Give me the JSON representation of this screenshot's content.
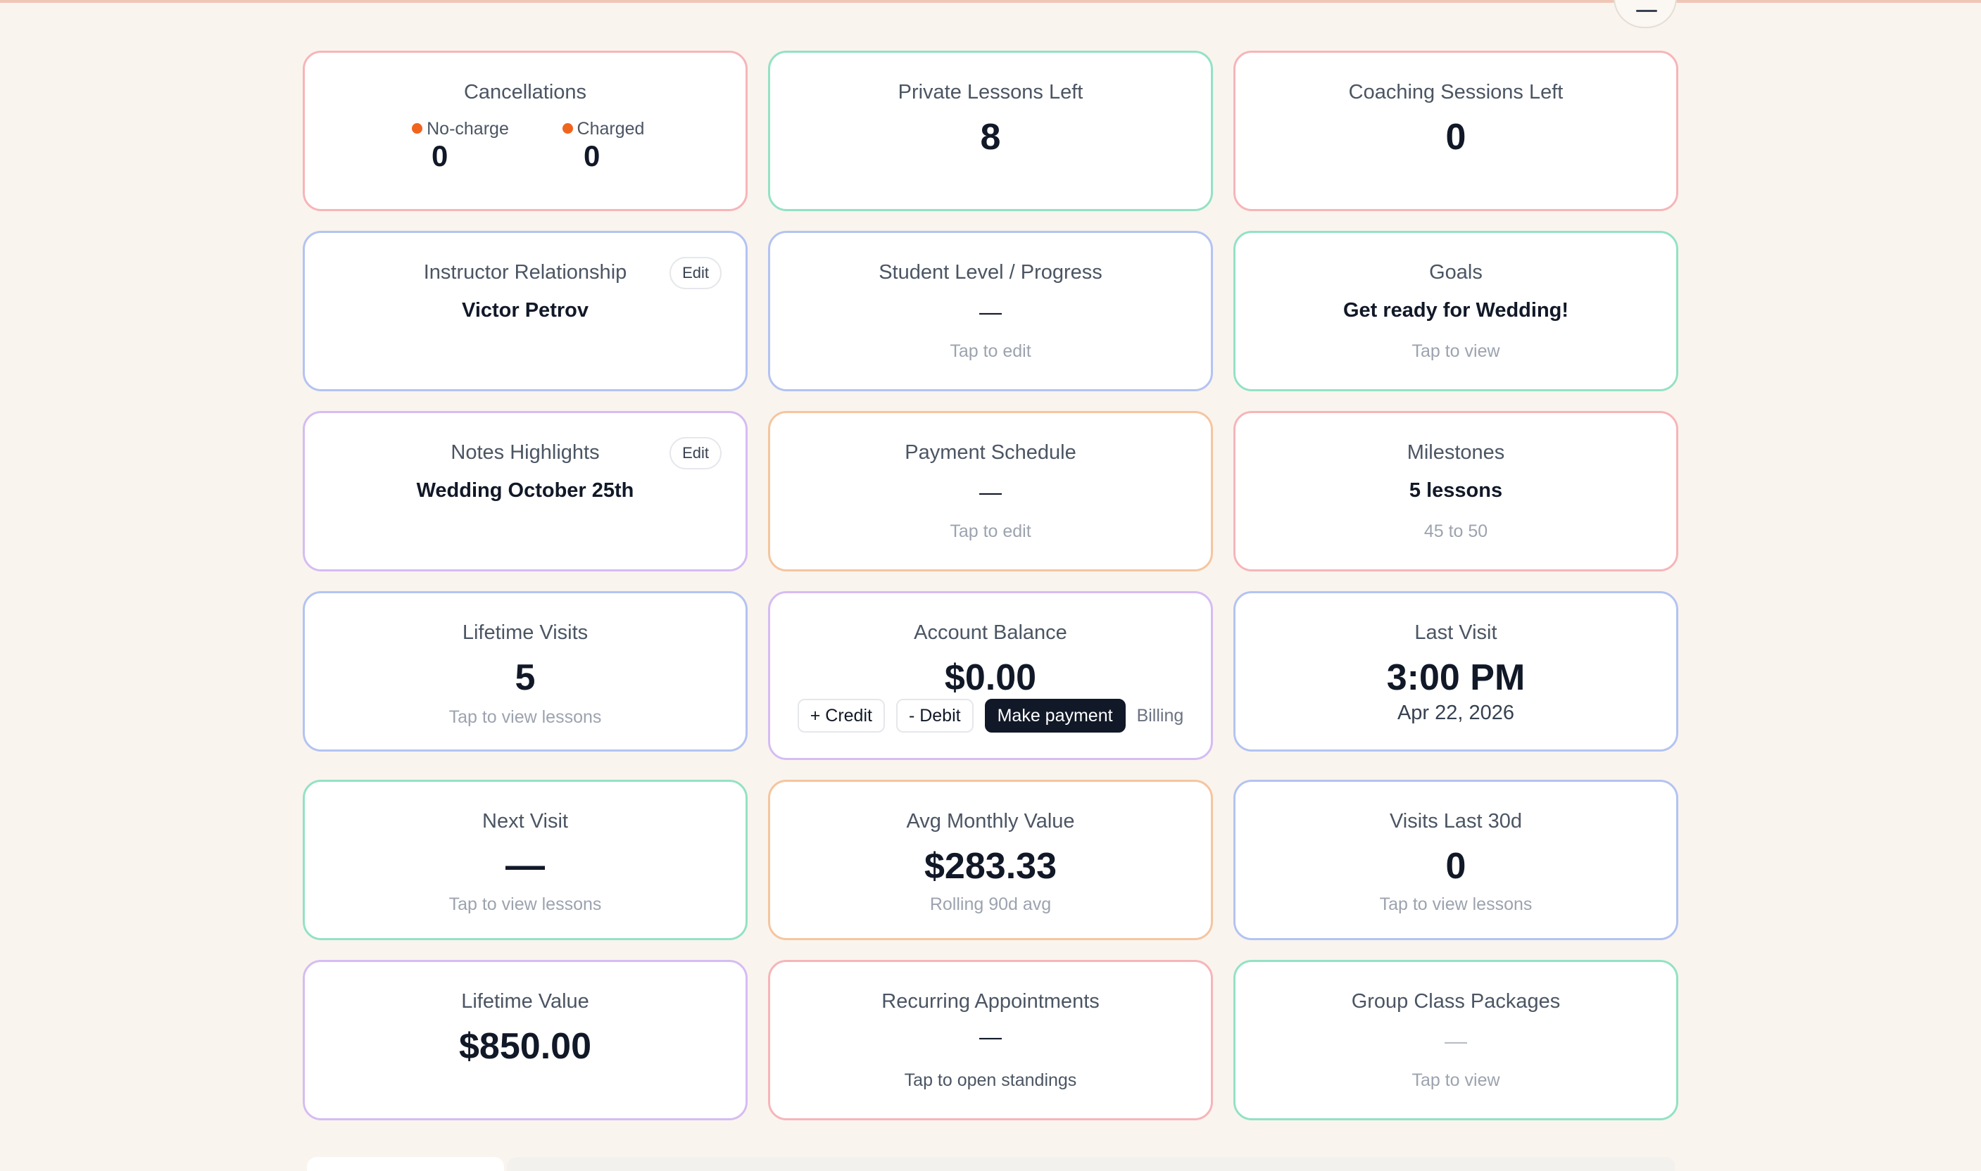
{
  "cards": {
    "cancellations": {
      "title": "Cancellations",
      "no_charge_label": "No-charge",
      "no_charge_value": "0",
      "charged_label": "Charged",
      "charged_value": "0",
      "dot_color": "#f0641e"
    },
    "private_lessons": {
      "title": "Private Lessons Left",
      "value": "8"
    },
    "coaching_sessions": {
      "title": "Coaching Sessions Left",
      "value": "0"
    },
    "instructor": {
      "title": "Instructor Relationship",
      "value": "Victor Petrov",
      "edit_label": "Edit"
    },
    "student_level": {
      "title": "Student Level / Progress",
      "value": "—",
      "hint": "Tap to edit"
    },
    "goals": {
      "title": "Goals",
      "value": "Get ready for Wedding!",
      "hint": "Tap to view"
    },
    "notes": {
      "title": "Notes Highlights",
      "value": "Wedding October 25th",
      "edit_label": "Edit"
    },
    "payment_schedule": {
      "title": "Payment Schedule",
      "value": "—",
      "hint": "Tap to edit"
    },
    "milestones": {
      "title": "Milestones",
      "value": "5 lessons",
      "hint": "45 to 50"
    },
    "lifetime_visits": {
      "title": "Lifetime Visits",
      "value": "5",
      "hint": "Tap to view lessons"
    },
    "account_balance": {
      "title": "Account Balance",
      "value": "$0.00",
      "credit_label": "+ Credit",
      "debit_label": "- Debit",
      "payment_label": "Make payment",
      "billing_label": "Billing"
    },
    "last_visit": {
      "title": "Last Visit",
      "time": "3:00 PM",
      "date": "Apr 22, 2026"
    },
    "next_visit": {
      "title": "Next Visit",
      "value": "—",
      "hint": "Tap to view lessons"
    },
    "avg_monthly": {
      "title": "Avg Monthly Value",
      "value": "$283.33",
      "hint": "Rolling 90d avg"
    },
    "visits_30d": {
      "title": "Visits Last 30d",
      "value": "0",
      "hint": "Tap to view lessons"
    },
    "lifetime_value": {
      "title": "Lifetime Value",
      "value": "$850.00"
    },
    "recurring": {
      "title": "Recurring Appointments",
      "value": "—",
      "hint": "Tap to open standings"
    },
    "group_class": {
      "title": "Group Class Packages",
      "value": "—",
      "hint": "Tap to view"
    }
  },
  "colors": {
    "background": "#faf4ee",
    "border_red": "#f6b5b9",
    "border_green": "#93e2c5",
    "border_blue": "#b3c3f2",
    "border_purple": "#d5bcf3",
    "border_orange": "#f5c59f",
    "primary_button": "#111827"
  },
  "icons": {
    "menu": "menu-icon"
  }
}
